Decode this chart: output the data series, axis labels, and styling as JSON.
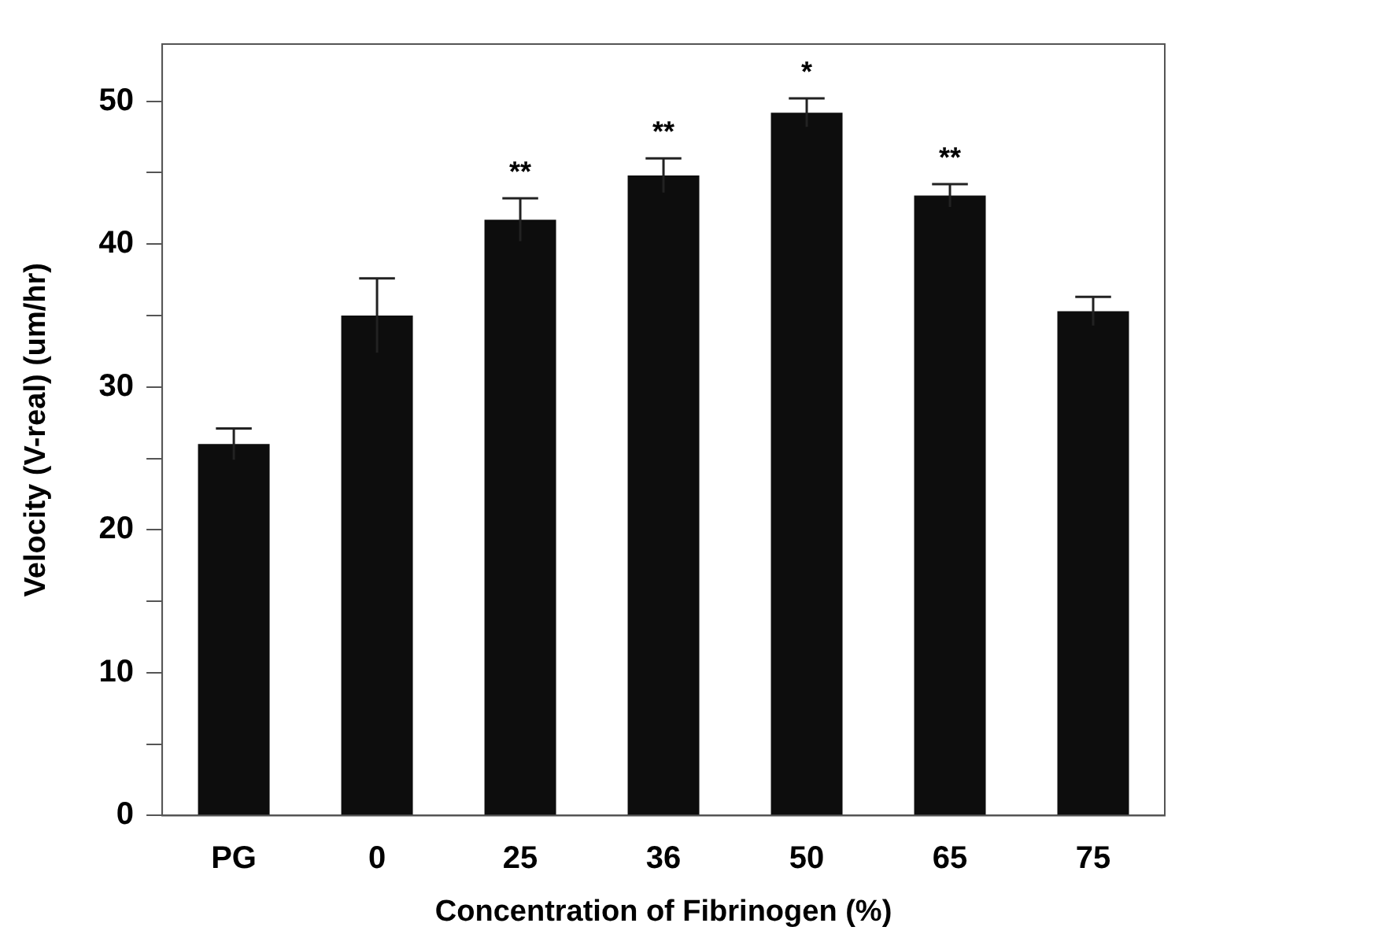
{
  "chart_data": {
    "type": "bar",
    "xlabel": "Concentration of Fibrinogen (%)",
    "ylabel": "Velocity (V-real) (um/hr)",
    "categories": [
      "PG",
      "0",
      "25",
      "36",
      "50",
      "65",
      "75"
    ],
    "values": [
      26.0,
      35.0,
      41.7,
      44.8,
      49.2,
      43.4,
      35.3
    ],
    "errors": [
      1.1,
      2.6,
      1.5,
      1.2,
      1.0,
      0.8,
      1.0
    ],
    "color": "#0d0d0d",
    "ylim": [
      0,
      54
    ],
    "yticks": [
      0,
      {
        "value": 5,
        "label": null
      },
      10,
      {
        "value": 15,
        "label": null
      },
      20,
      {
        "value": 25,
        "label": null
      },
      30,
      {
        "value": 35,
        "label": null
      },
      40,
      {
        "value": 45,
        "label": null
      },
      50
    ],
    "grid": false,
    "value_labels": [
      null,
      null,
      "**",
      "**",
      "*",
      "**",
      null
    ]
  }
}
